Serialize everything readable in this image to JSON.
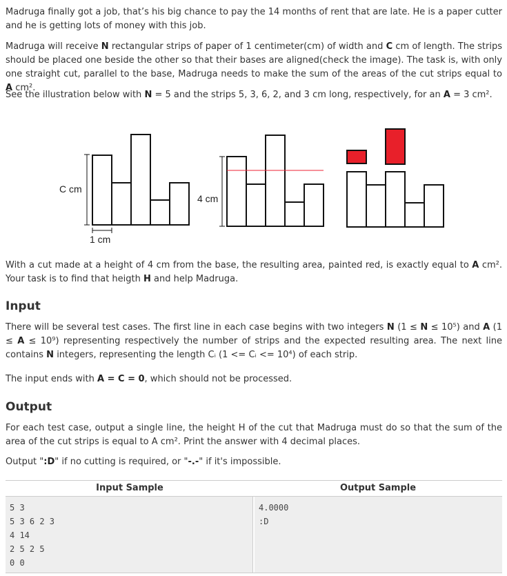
{
  "paragraphs": [
    [
      "Madruga finally got a job, that’s his big chance to pay the 14 months of rent that are late. He is a paper cutter and he is getting lots of money with this job."
    ],
    [
      "Madruga will receive ",
      "N",
      " rectangular strips of paper of 1 centimeter(cm) of width and ",
      "C",
      " cm of length. The strips should be placed one beside the other so that their bases are aligned(check the image). The task is, with only one straight cut, parallel to the base, Madruga needs to make the sum of the areas of the cut strips equal to ",
      "A",
      " cm²."
    ],
    [
      "See the illustration below with ",
      "N",
      " = 5 and the strips 5, 3, 6, 2, and 3 cm long, respectively, for an ",
      "A",
      " = 3 cm²."
    ],
    [
      "With a cut made at a height of 4 cm from the base, the resulting area, painted red, is exactly equal to ",
      "A",
      " cm². Your task is to find that heigth ",
      "H",
      " and help Madruga."
    ]
  ],
  "figure": {
    "labels": [
      "C cm",
      "1 cm",
      "4 cm"
    ]
  },
  "input": {
    "heading": "Input",
    "paragraphs": [
      [
        "There will be several test cases. The first line in each case begins with two integers ",
        "N",
        " (1 ≤ ",
        "N",
        " ≤ 10⁵) and ",
        "A",
        " (1 ≤ ",
        "A",
        " ≤ 10⁹) representing respectively the number of strips and the expected resulting area. The next line contains ",
        "N",
        " integers, representing the length Cᵢ (1 <= Cᵢ <= 10⁴) of each strip."
      ],
      [
        "The input ends with ",
        "A = C = 0",
        ", which should not be processed."
      ]
    ]
  },
  "output": {
    "heading": "Output",
    "paragraphs": [
      [
        "For each test case, output a single line, the height H of the cut that Madruga must do so that the sum of the area of the cut strips is equal to A cm². Print the answer with 4 decimal places."
      ],
      [
        "Output \"",
        ":D",
        "\" if no cutting is required, or \"",
        "-.-",
        "\" if it's impossible."
      ]
    ]
  },
  "table": {
    "headers": [
      "Input Sample",
      "Output Sample"
    ],
    "input_lines": [
      "5 3",
      "5 3 6 2 3",
      "4 14",
      "2 5 2 5",
      "0 0"
    ],
    "output_lines": [
      "4.0000",
      ":D"
    ]
  }
}
